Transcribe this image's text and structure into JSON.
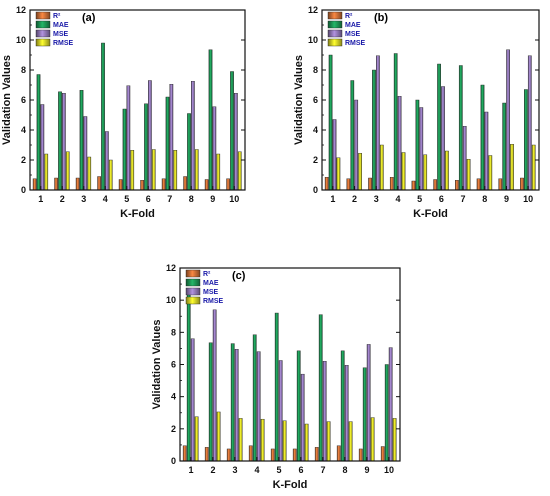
{
  "chart_data": [
    {
      "panel_label": "(a)",
      "type": "bar",
      "xlabel": "K-Fold",
      "ylabel": "Validation Values",
      "ylim": [
        0,
        12
      ],
      "yticks": [
        0,
        2,
        4,
        6,
        8,
        10,
        12
      ],
      "categories": [
        "1",
        "2",
        "3",
        "4",
        "5",
        "6",
        "7",
        "8",
        "9",
        "10"
      ],
      "legend_position": "top-left",
      "series": [
        {
          "name": "R²",
          "color": "#d9763a",
          "values": [
            0.75,
            0.8,
            0.8,
            0.9,
            0.7,
            0.65,
            0.75,
            0.9,
            0.7,
            0.75
          ]
        },
        {
          "name": "MAE",
          "color": "#1f9e5a",
          "values": [
            7.7,
            6.55,
            6.65,
            9.8,
            5.4,
            5.75,
            6.2,
            5.1,
            9.35,
            7.9
          ]
        },
        {
          "name": "MSE",
          "color": "#9a7fc2",
          "values": [
            5.7,
            6.45,
            4.9,
            3.9,
            6.95,
            7.3,
            7.05,
            7.25,
            5.55,
            6.45
          ]
        },
        {
          "name": "RMSE",
          "color": "#e6e22a",
          "values": [
            2.4,
            2.55,
            2.2,
            2.0,
            2.65,
            2.7,
            2.65,
            2.7,
            2.4,
            2.55
          ]
        }
      ]
    },
    {
      "panel_label": "(b)",
      "type": "bar",
      "xlabel": "K-Fold",
      "ylabel": "Validation Values",
      "ylim": [
        0,
        12
      ],
      "yticks": [
        0,
        2,
        4,
        6,
        8,
        10,
        12
      ],
      "categories": [
        "1",
        "2",
        "3",
        "4",
        "5",
        "6",
        "7",
        "8",
        "9",
        "10"
      ],
      "legend_position": "top-left",
      "series": [
        {
          "name": "R²",
          "color": "#d9763a",
          "values": [
            0.85,
            0.75,
            0.8,
            0.85,
            0.6,
            0.7,
            0.65,
            0.75,
            0.75,
            0.8
          ]
        },
        {
          "name": "MAE",
          "color": "#1f9e5a",
          "values": [
            9.0,
            7.3,
            8.0,
            9.1,
            6.0,
            8.4,
            8.3,
            7.0,
            5.8,
            6.7
          ]
        },
        {
          "name": "MSE",
          "color": "#9a7fc2",
          "values": [
            4.7,
            6.0,
            8.95,
            6.25,
            5.5,
            6.9,
            4.25,
            5.2,
            9.35,
            8.95
          ]
        },
        {
          "name": "RMSE",
          "color": "#e6e22a",
          "values": [
            2.15,
            2.45,
            3.0,
            2.5,
            2.35,
            2.6,
            2.05,
            2.3,
            3.05,
            3.0
          ]
        }
      ]
    },
    {
      "panel_label": "(c)",
      "type": "bar",
      "xlabel": "K-Fold",
      "ylabel": "Validation Values",
      "ylim": [
        0,
        12
      ],
      "yticks": [
        0,
        2,
        4,
        6,
        8,
        10,
        12
      ],
      "categories": [
        "1",
        "2",
        "3",
        "4",
        "5",
        "6",
        "7",
        "8",
        "9",
        "10"
      ],
      "legend_position": "top-left",
      "series": [
        {
          "name": "R²",
          "color": "#d9763a",
          "values": [
            0.95,
            0.85,
            0.75,
            0.95,
            0.75,
            0.75,
            0.85,
            0.95,
            0.75,
            0.9
          ]
        },
        {
          "name": "MAE",
          "color": "#1f9e5a",
          "values": [
            10.6,
            7.35,
            7.3,
            7.85,
            9.2,
            6.85,
            9.1,
            6.85,
            5.8,
            6.0
          ]
        },
        {
          "name": "MSE",
          "color": "#9a7fc2",
          "values": [
            7.6,
            9.4,
            6.95,
            6.8,
            6.25,
            5.4,
            6.2,
            5.95,
            7.25,
            7.05
          ]
        },
        {
          "name": "RMSE",
          "color": "#e6e22a",
          "values": [
            2.75,
            3.05,
            2.65,
            2.6,
            2.5,
            2.3,
            2.45,
            2.45,
            2.7,
            2.65
          ]
        }
      ]
    }
  ]
}
